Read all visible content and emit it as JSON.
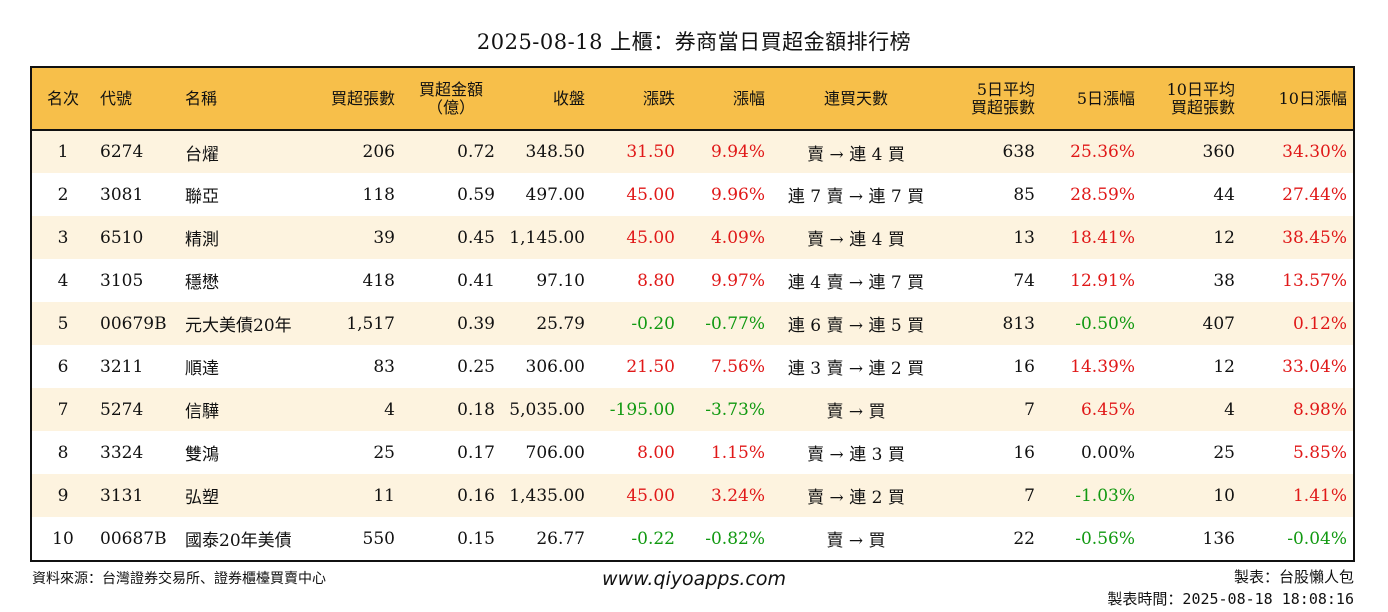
{
  "title": "2025-08-18 上櫃：券商當日買超金額排行榜",
  "headers": {
    "rank": "名次",
    "code": "代號",
    "name": "名稱",
    "buy_volume": "買超張數",
    "buy_amount_l1": "買超金額",
    "buy_amount_l2": "（億）",
    "close": "收盤",
    "change": "漲跌",
    "change_pct": "漲幅",
    "streak": "連買天數",
    "avg5_l1": "5日平均",
    "avg5_l2": "買超張數",
    "pct5": "5日漲幅",
    "avg10_l1": "10日平均",
    "avg10_l2": "買超張數",
    "pct10": "10日漲幅"
  },
  "rows": [
    {
      "rank": "1",
      "code": "6274",
      "name": "台燿",
      "buy_volume": "206",
      "buy_amount": "0.72",
      "close": "348.50",
      "change": "31.50",
      "change_pct": "9.94%",
      "streak": "賣 → 連 4 買",
      "avg5": "638",
      "pct5": "25.36%",
      "avg10": "360",
      "pct10": "34.30%"
    },
    {
      "rank": "2",
      "code": "3081",
      "name": "聯亞",
      "buy_volume": "118",
      "buy_amount": "0.59",
      "close": "497.00",
      "change": "45.00",
      "change_pct": "9.96%",
      "streak": "連 7 賣 → 連 7 買",
      "avg5": "85",
      "pct5": "28.59%",
      "avg10": "44",
      "pct10": "27.44%"
    },
    {
      "rank": "3",
      "code": "6510",
      "name": "精測",
      "buy_volume": "39",
      "buy_amount": "0.45",
      "close": "1,145.00",
      "change": "45.00",
      "change_pct": "4.09%",
      "streak": "賣 → 連 4 買",
      "avg5": "13",
      "pct5": "18.41%",
      "avg10": "12",
      "pct10": "38.45%"
    },
    {
      "rank": "4",
      "code": "3105",
      "name": "穩懋",
      "buy_volume": "418",
      "buy_amount": "0.41",
      "close": "97.10",
      "change": "8.80",
      "change_pct": "9.97%",
      "streak": "連 4 賣 → 連 7 買",
      "avg5": "74",
      "pct5": "12.91%",
      "avg10": "38",
      "pct10": "13.57%"
    },
    {
      "rank": "5",
      "code": "00679B",
      "name": "元大美債20年",
      "buy_volume": "1,517",
      "buy_amount": "0.39",
      "close": "25.79",
      "change": "-0.20",
      "change_pct": "-0.77%",
      "streak": "連 6 賣 → 連 5 買",
      "avg5": "813",
      "pct5": "-0.50%",
      "avg10": "407",
      "pct10": "0.12%"
    },
    {
      "rank": "6",
      "code": "3211",
      "name": "順達",
      "buy_volume": "83",
      "buy_amount": "0.25",
      "close": "306.00",
      "change": "21.50",
      "change_pct": "7.56%",
      "streak": "連 3 賣 → 連 2 買",
      "avg5": "16",
      "pct5": "14.39%",
      "avg10": "12",
      "pct10": "33.04%"
    },
    {
      "rank": "7",
      "code": "5274",
      "name": "信驊",
      "buy_volume": "4",
      "buy_amount": "0.18",
      "close": "5,035.00",
      "change": "-195.00",
      "change_pct": "-3.73%",
      "streak": "賣 → 買",
      "avg5": "7",
      "pct5": "6.45%",
      "avg10": "4",
      "pct10": "8.98%"
    },
    {
      "rank": "8",
      "code": "3324",
      "name": "雙鴻",
      "buy_volume": "25",
      "buy_amount": "0.17",
      "close": "706.00",
      "change": "8.00",
      "change_pct": "1.15%",
      "streak": "賣 → 連 3 買",
      "avg5": "16",
      "pct5": "0.00%",
      "avg10": "25",
      "pct10": "5.85%"
    },
    {
      "rank": "9",
      "code": "3131",
      "name": "弘塑",
      "buy_volume": "11",
      "buy_amount": "0.16",
      "close": "1,435.00",
      "change": "45.00",
      "change_pct": "3.24%",
      "streak": "賣 → 連 2 買",
      "avg5": "7",
      "pct5": "-1.03%",
      "avg10": "10",
      "pct10": "1.41%"
    },
    {
      "rank": "10",
      "code": "00687B",
      "name": "國泰20年美債",
      "buy_volume": "550",
      "buy_amount": "0.15",
      "close": "26.77",
      "change": "-0.22",
      "change_pct": "-0.82%",
      "streak": "賣 → 買",
      "avg5": "22",
      "pct5": "-0.56%",
      "avg10": "136",
      "pct10": "-0.04%"
    }
  ],
  "footer": {
    "source": "資料來源：台灣證券交易所、證券櫃檯買賣中心",
    "website": "www.qiyoapps.com",
    "maker": "製表：台股懶人包",
    "made_time": "製表時間：2025-08-18 18:08:16"
  }
}
